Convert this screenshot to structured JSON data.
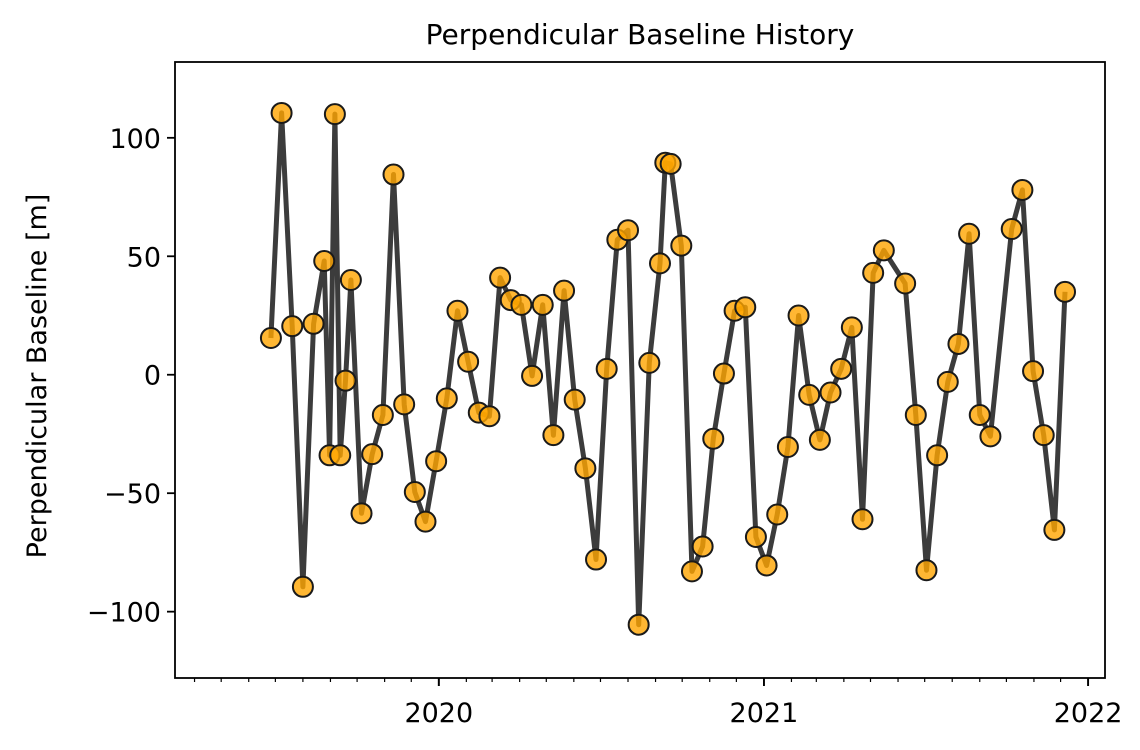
{
  "chart_data": {
    "type": "line",
    "title": "Perpendicular Baseline History",
    "xlabel": "",
    "ylabel": "Perpendicular Baseline [m]",
    "x_axis": {
      "kind": "date",
      "min": "2019-03-10",
      "max": "2022-01-20",
      "tick_labels": [
        "2020",
        "2021",
        "2022"
      ]
    },
    "ylim": [
      -128,
      132
    ],
    "y_ticks": [
      -100,
      -50,
      0,
      50,
      100
    ],
    "y_tick_labels": [
      "−100",
      "−50",
      "0",
      "50",
      "100"
    ],
    "grid": false,
    "line_color": "#3c3c3c",
    "marker_fill": "#ffa500",
    "marker_edge": "#1a1a1a",
    "series": [
      {
        "x": [
          "2019-06-26",
          "2019-07-08",
          "2019-07-20",
          "2019-08-01",
          "2019-08-13",
          "2019-08-25",
          "2019-08-31",
          "2019-09-06",
          "2019-09-12",
          "2019-09-18",
          "2019-09-24",
          "2019-10-06",
          "2019-10-18",
          "2019-10-30",
          "2019-11-11",
          "2019-11-23",
          "2019-12-05",
          "2019-12-17",
          "2019-12-29",
          "2020-01-10",
          "2020-01-22",
          "2020-02-03",
          "2020-02-15",
          "2020-02-27",
          "2020-03-10",
          "2020-03-22",
          "2020-04-03",
          "2020-04-15",
          "2020-04-27",
          "2020-05-09",
          "2020-05-21",
          "2020-06-02",
          "2020-06-14",
          "2020-06-26",
          "2020-07-08",
          "2020-07-20",
          "2020-08-01",
          "2020-08-13",
          "2020-08-25",
          "2020-09-06",
          "2020-09-12",
          "2020-09-18",
          "2020-09-30",
          "2020-10-12",
          "2020-10-24",
          "2020-11-05",
          "2020-11-17",
          "2020-11-29",
          "2020-12-11",
          "2020-12-23",
          "2021-01-04",
          "2021-01-16",
          "2021-01-28",
          "2021-02-09",
          "2021-02-21",
          "2021-03-05",
          "2021-03-17",
          "2021-03-29",
          "2021-04-10",
          "2021-04-22",
          "2021-05-04",
          "2021-05-16",
          "2021-06-09",
          "2021-06-21",
          "2021-07-03",
          "2021-07-15",
          "2021-07-27",
          "2021-08-08",
          "2021-08-20",
          "2021-09-01",
          "2021-09-13",
          "2021-10-07",
          "2021-10-19",
          "2021-10-31",
          "2021-11-12",
          "2021-11-24",
          "2021-12-06"
        ],
        "y": [
          15.5,
          110.5,
          20.5,
          -89.5,
          21.5,
          48,
          -34,
          110,
          -34,
          -2.5,
          40,
          -58.5,
          -33.5,
          -17,
          84.5,
          -12.5,
          -49.5,
          -62,
          -36.5,
          -10,
          27,
          5.5,
          -16,
          -17.5,
          41,
          31.5,
          29.5,
          -0.5,
          29.5,
          -25.5,
          35.5,
          -10.5,
          -39.5,
          -78,
          2.5,
          57,
          61,
          -105.5,
          5,
          47,
          89.5,
          89,
          54.5,
          -83,
          -72.5,
          -27,
          0.5,
          27,
          28.5,
          -68.5,
          -80.5,
          -59,
          -30.5,
          25,
          -8.5,
          -27.5,
          -7.5,
          2.5,
          20,
          -61,
          43,
          52.5,
          38.5,
          -17,
          -82.5,
          -34,
          -3,
          13,
          59.5,
          -17,
          -26,
          61.5,
          78,
          1.5,
          -25.5,
          -65.5,
          35
        ]
      }
    ]
  }
}
